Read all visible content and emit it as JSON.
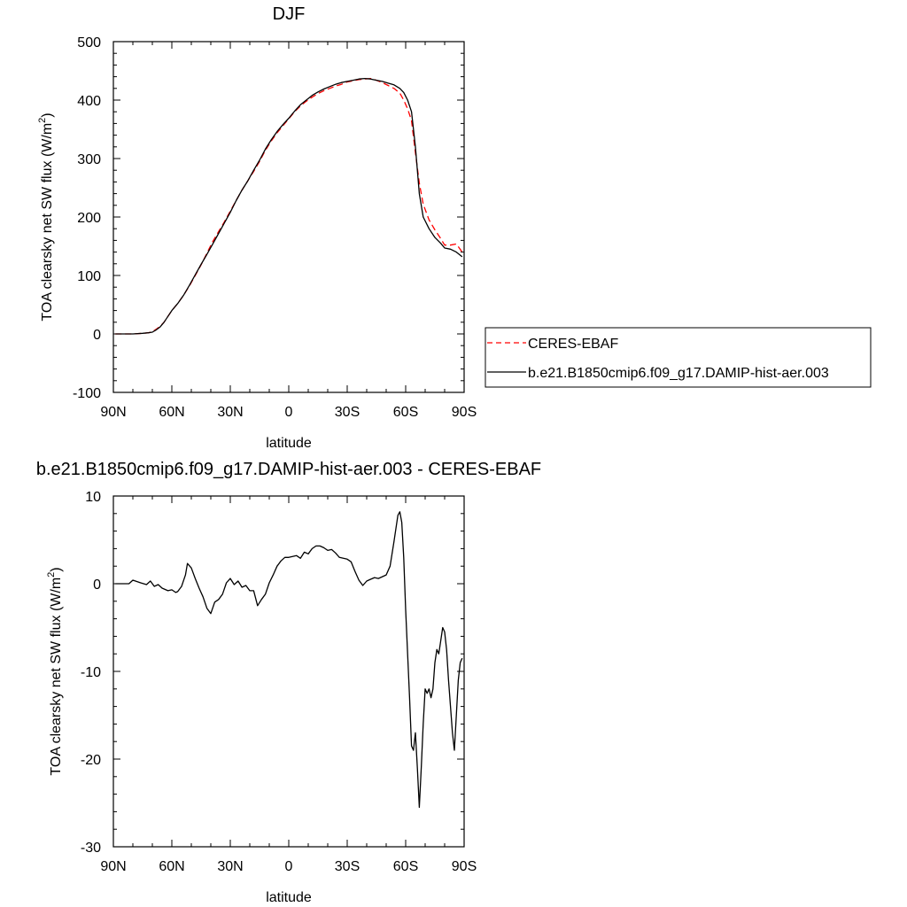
{
  "chart_data": [
    {
      "type": "line",
      "title": "DJF",
      "xlabel": "latitude",
      "ylabel": "TOA clearsky net SW flux (W/m",
      "ylabel_sup": "2",
      "ylabel_close": ")",
      "xlim": [
        90,
        -90
      ],
      "ylim": [
        -100,
        500
      ],
      "xtick_values": [
        90,
        60,
        30,
        0,
        -30,
        -60,
        -90
      ],
      "xticks": [
        "90N",
        "60N",
        "30N",
        "0",
        "30S",
        "60S",
        "90S"
      ],
      "yticks": [
        -100,
        0,
        100,
        200,
        300,
        400,
        500
      ],
      "legend_position": "right",
      "series": [
        {
          "name": "CERES-EBAF",
          "color": "#ff0000",
          "dash": "dashed",
          "x": [
            89,
            85,
            80,
            75,
            72,
            70,
            68,
            66,
            64,
            62,
            60,
            57,
            54,
            51,
            48,
            45,
            42,
            39,
            36,
            33,
            30,
            27,
            24,
            21,
            18,
            15,
            12,
            9,
            6,
            3,
            0,
            -3,
            -6,
            -9,
            -12,
            -15,
            -18,
            -21,
            -24,
            -27,
            -30,
            -33,
            -36,
            -39,
            -42,
            -45,
            -48,
            -51,
            -54,
            -57,
            -59,
            -61,
            -63,
            -65,
            -67,
            -69,
            -72,
            -75,
            -78,
            -80,
            -83,
            -86,
            -89
          ],
          "y": [
            0,
            0,
            0,
            1,
            2,
            4,
            8,
            13,
            20,
            30,
            40,
            52,
            66,
            82,
            100,
            118,
            138,
            158,
            175,
            192,
            210,
            228,
            246,
            262,
            278,
            295,
            314,
            330,
            344,
            356,
            368,
            380,
            390,
            398,
            405,
            411,
            416,
            420,
            424,
            427,
            431,
            433,
            435,
            436,
            437,
            434,
            430,
            425,
            420,
            412,
            400,
            385,
            365,
            310,
            258,
            222,
            195,
            178,
            163,
            152,
            152,
            154,
            140
          ]
        },
        {
          "name": "b.e21.B1850cmip6.f09_g17.DAMIP-hist-aer.003",
          "color": "#000000",
          "dash": "solid",
          "x": [
            89,
            85,
            80,
            75,
            72,
            70,
            68,
            66,
            64,
            62,
            60,
            57,
            54,
            51,
            48,
            45,
            42,
            39,
            36,
            33,
            30,
            27,
            24,
            21,
            18,
            15,
            12,
            9,
            6,
            3,
            0,
            -3,
            -6,
            -9,
            -12,
            -15,
            -18,
            -21,
            -24,
            -27,
            -30,
            -33,
            -36,
            -39,
            -42,
            -45,
            -48,
            -51,
            -54,
            -57,
            -59,
            -61,
            -63,
            -65,
            -67,
            -69,
            -72,
            -75,
            -78,
            -80,
            -83,
            -86,
            -89
          ],
          "y": [
            0,
            0,
            0,
            1,
            2,
            3,
            7,
            12,
            20,
            30,
            40,
            52,
            66,
            83,
            101,
            119,
            136,
            154,
            172,
            190,
            208,
            228,
            246,
            262,
            280,
            297,
            316,
            332,
            346,
            358,
            369,
            381,
            392,
            400,
            408,
            414,
            419,
            423,
            427,
            430,
            432,
            434,
            436,
            437,
            436,
            434,
            432,
            429,
            426,
            420,
            413,
            400,
            380,
            320,
            240,
            200,
            180,
            165,
            155,
            147,
            145,
            140,
            132
          ]
        }
      ]
    },
    {
      "type": "line",
      "title": "b.e21.B1850cmip6.f09_g17.DAMIP-hist-aer.003 - CERES-EBAF",
      "xlabel": "latitude",
      "ylabel": "TOA clearsky net SW flux (W/m",
      "ylabel_sup": "2",
      "ylabel_close": ")",
      "xlim": [
        90,
        -90
      ],
      "ylim": [
        -30,
        10
      ],
      "xtick_values": [
        90,
        60,
        30,
        0,
        -30,
        -60,
        -90
      ],
      "xticks": [
        "90N",
        "60N",
        "30N",
        "0",
        "30S",
        "60S",
        "90S"
      ],
      "yticks": [
        -30,
        -20,
        -10,
        0,
        10
      ],
      "series": [
        {
          "name": "",
          "color": "#000000",
          "dash": "solid",
          "x": [
            89,
            82,
            80,
            76,
            73,
            71,
            69,
            67,
            65,
            62,
            60,
            58,
            57,
            55,
            53,
            52,
            50,
            48,
            46,
            44,
            42,
            40,
            38,
            36,
            34,
            32,
            30,
            28,
            26,
            24,
            22,
            20,
            18,
            16,
            14,
            12,
            10,
            8,
            6,
            4,
            2,
            0,
            -2,
            -4,
            -6,
            -8,
            -10,
            -12,
            -14,
            -16,
            -18,
            -20,
            -22,
            -24,
            -26,
            -28,
            -30,
            -32,
            -34,
            -36,
            -38,
            -40,
            -42,
            -44,
            -46,
            -48,
            -50,
            -52,
            -54,
            -56,
            -57,
            -58,
            -59,
            -60,
            -61,
            -62,
            -63,
            -64,
            -65,
            -66,
            -67,
            -68,
            -69,
            -70,
            -71,
            -72,
            -73,
            -74,
            -75,
            -76,
            -77,
            -78,
            -79,
            -80,
            -81,
            -82,
            -83,
            -84,
            -85,
            -86,
            -87,
            -88,
            -89
          ],
          "y": [
            0,
            0,
            0.4,
            0.1,
            -0.1,
            0.3,
            -0.3,
            -0.1,
            -0.5,
            -0.8,
            -0.7,
            -1.0,
            -0.9,
            -0.3,
            1.0,
            2.3,
            1.8,
            0.6,
            -0.5,
            -1.5,
            -2.8,
            -3.4,
            -2.1,
            -1.8,
            -1.2,
            0.1,
            0.6,
            -0.1,
            0.3,
            -0.4,
            -0.2,
            -0.8,
            -0.8,
            -2.5,
            -1.8,
            -1.2,
            0.1,
            1.0,
            2.0,
            2.6,
            3.0,
            3.0,
            3.1,
            3.2,
            2.9,
            3.6,
            3.4,
            4.0,
            4.3,
            4.3,
            4.1,
            3.8,
            3.9,
            3.5,
            3.0,
            2.9,
            2.8,
            2.5,
            1.4,
            0.4,
            -0.2,
            0.3,
            0.5,
            0.7,
            0.6,
            0.8,
            1.0,
            2.0,
            4.8,
            7.8,
            8.2,
            7.0,
            3.0,
            -3.0,
            -8.0,
            -13.0,
            -18.5,
            -19.0,
            -17.0,
            -21.0,
            -25.5,
            -21.0,
            -16.0,
            -12.0,
            -12.5,
            -12.0,
            -13.0,
            -12.0,
            -9.0,
            -7.5,
            -8.0,
            -6.5,
            -5.0,
            -5.5,
            -7.5,
            -11.0,
            -14.0,
            -17.0,
            -19.0,
            -15.0,
            -11.0,
            -9.0,
            -8.5
          ]
        }
      ]
    }
  ]
}
